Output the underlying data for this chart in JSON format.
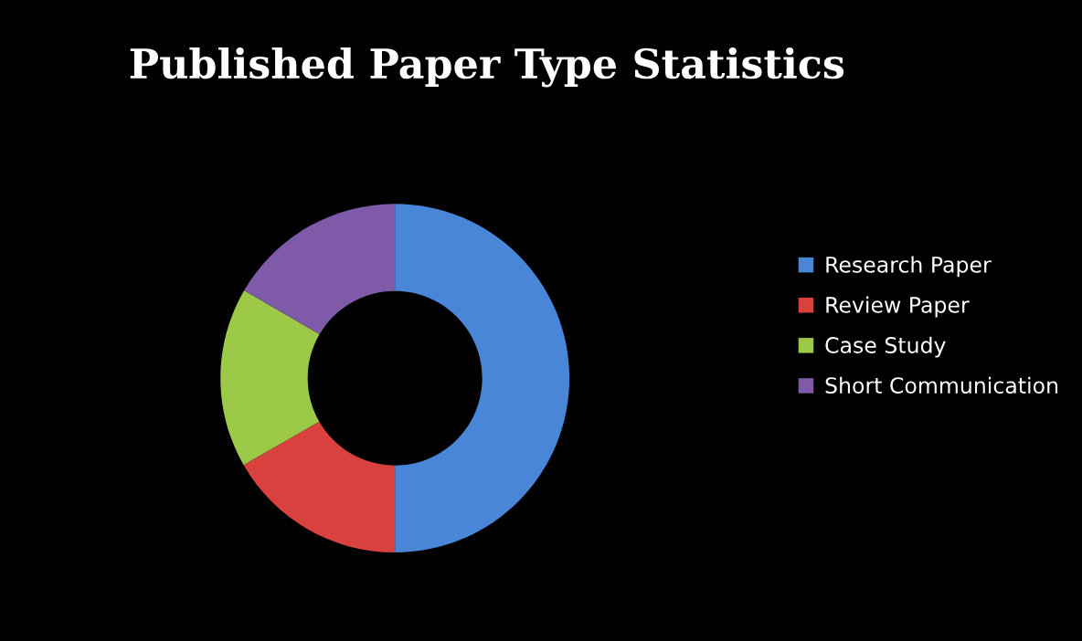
{
  "chart_data": {
    "type": "donut",
    "title": "Published Paper Type Statistics",
    "categories": [
      "Research Paper",
      "Review Paper",
      "Case Study",
      "Short Communication"
    ],
    "values": [
      50,
      16.7,
      16.7,
      16.6
    ],
    "colors": [
      "#4a86d8",
      "#d9413f",
      "#9bc847",
      "#7e5aa8"
    ],
    "legend": "right"
  }
}
